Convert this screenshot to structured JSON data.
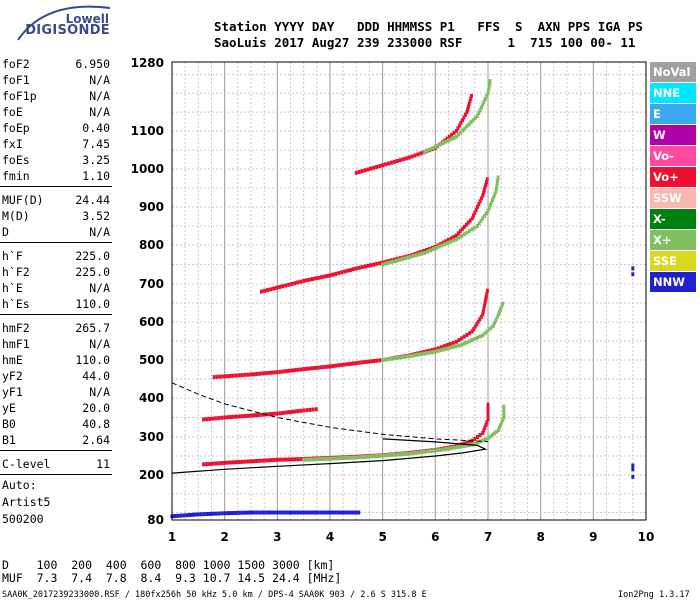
{
  "logo": {
    "top": "Lowell",
    "brand": "DIGISONDE"
  },
  "header": {
    "line1": "Station YYYY DAY   DDD HHMMSS P1   FFS  S  AXN PPS IGA PS",
    "line2": "SaoLuis 2017 Aug27 239 233000 RSF      1  715 100 00- 11"
  },
  "params": [
    {
      "name": "foF2",
      "value": "6.950"
    },
    {
      "name": "foF1",
      "value": "N/A"
    },
    {
      "name": "foF1p",
      "value": "N/A"
    },
    {
      "name": "foE",
      "value": "N/A"
    },
    {
      "name": "foEp",
      "value": "0.40"
    },
    {
      "name": "fxI",
      "value": "7.45"
    },
    {
      "name": "foEs",
      "value": "3.25"
    },
    {
      "name": "fmin",
      "value": "1.10"
    },
    {
      "name": "MUF(D)",
      "value": "24.44"
    },
    {
      "name": "M(D)",
      "value": "3.52"
    },
    {
      "name": "D",
      "value": "N/A"
    },
    {
      "name": "h`F",
      "value": "225.0"
    },
    {
      "name": "h`F2",
      "value": "225.0"
    },
    {
      "name": "h`E",
      "value": "N/A"
    },
    {
      "name": "h`Es",
      "value": "110.0"
    },
    {
      "name": "hmF2",
      "value": "265.7"
    },
    {
      "name": "hmF1",
      "value": "N/A"
    },
    {
      "name": "hmE",
      "value": "110.0"
    },
    {
      "name": "yF2",
      "value": "44.0"
    },
    {
      "name": "yF1",
      "value": "N/A"
    },
    {
      "name": "yE",
      "value": "20.0"
    },
    {
      "name": "B0",
      "value": "40.8"
    },
    {
      "name": "B1",
      "value": "2.64"
    },
    {
      "name": "C-level",
      "value": "11"
    }
  ],
  "auto": {
    "l1": "Auto:",
    "l2": "Artist5",
    "l3": "500200"
  },
  "legend": [
    {
      "label": "NoVal",
      "color": "#a0a0a0"
    },
    {
      "label": "NNE",
      "color": "#00e8ff"
    },
    {
      "label": "E",
      "color": "#3aa8f0"
    },
    {
      "label": "W",
      "color": "#b000a8"
    },
    {
      "label": "Vo-",
      "color": "#ff4aa0"
    },
    {
      "label": "Vo+",
      "color": "#ee1030"
    },
    {
      "label": "SSW",
      "color": "#f8b8b0"
    },
    {
      "label": "X-",
      "color": "#008010"
    },
    {
      "label": "X+",
      "color": "#80c060"
    },
    {
      "label": "SSE",
      "color": "#d8d820"
    },
    {
      "label": "NNW",
      "color": "#2020d0"
    }
  ],
  "footer": {
    "dist": "D    100  200  400  600  800 1000 1500 3000 [km]",
    "muf": "MUF  7.3  7.4  7.8  8.4  9.3 10.7 14.5 24.4 [MHz]",
    "file": "SAA0K_2017239233000.RSF / 180fx256h 50 kHz 5.0 km / DPS-4 SAA0K 903 / 2.6 S 315.8 E",
    "version": "Ion2Png 1.3.17"
  },
  "chart_data": {
    "type": "scatter",
    "xlim": [
      1,
      10
    ],
    "ylim": [
      80,
      1300
    ],
    "xticks": [
      "1",
      "2",
      "3",
      "4",
      "5",
      "6",
      "7",
      "8",
      "9",
      "10"
    ],
    "yticks": [
      {
        "v": 80,
        "label": "80"
      },
      {
        "v": 200,
        "label": "200"
      },
      {
        "v": 300,
        "label": "300"
      },
      {
        "v": 400,
        "label": "400"
      },
      {
        "v": 500,
        "label": "500"
      },
      {
        "v": 600,
        "label": "600"
      },
      {
        "v": 700,
        "label": "700"
      },
      {
        "v": 800,
        "label": "800"
      },
      {
        "v": 900,
        "label": "900"
      },
      {
        "v": 1000,
        "label": "1000"
      },
      {
        "v": 1100,
        "label": "1100"
      },
      {
        "v": 1280,
        "label": "1280"
      }
    ],
    "traces": [
      {
        "name": "o-trace 1 hop",
        "color": "#ee1030",
        "points": [
          [
            1.6,
            228
          ],
          [
            2.0,
            232
          ],
          [
            2.5,
            236
          ],
          [
            3.0,
            240
          ],
          [
            3.5,
            242
          ],
          [
            4.0,
            245
          ],
          [
            4.5,
            248
          ],
          [
            5.0,
            252
          ],
          [
            5.5,
            258
          ],
          [
            6.0,
            266
          ],
          [
            6.4,
            276
          ],
          [
            6.7,
            290
          ],
          [
            6.9,
            310
          ],
          [
            7.0,
            345
          ],
          [
            7.0,
            390
          ]
        ]
      },
      {
        "name": "x-trace 1 hop",
        "color": "#80c060",
        "points": [
          [
            3.5,
            240
          ],
          [
            4.5,
            246
          ],
          [
            5.5,
            256
          ],
          [
            6.2,
            268
          ],
          [
            6.7,
            280
          ],
          [
            7.0,
            296
          ],
          [
            7.2,
            318
          ],
          [
            7.3,
            350
          ],
          [
            7.3,
            385
          ]
        ]
      },
      {
        "name": "o-trace 2 hop",
        "color": "#ee1030",
        "points": [
          [
            1.8,
            455
          ],
          [
            2.5,
            462
          ],
          [
            3.0,
            468
          ],
          [
            3.5,
            476
          ],
          [
            4.0,
            483
          ],
          [
            4.5,
            492
          ],
          [
            5.0,
            500
          ],
          [
            5.5,
            512
          ],
          [
            6.0,
            528
          ],
          [
            6.4,
            548
          ],
          [
            6.7,
            575
          ],
          [
            6.9,
            620
          ],
          [
            7.0,
            690
          ]
        ]
      },
      {
        "name": "x-trace 2 hop",
        "color": "#80c060",
        "points": [
          [
            5.0,
            500
          ],
          [
            5.5,
            510
          ],
          [
            6.0,
            522
          ],
          [
            6.5,
            540
          ],
          [
            6.9,
            565
          ],
          [
            7.1,
            590
          ],
          [
            7.2,
            620
          ],
          [
            7.3,
            655
          ]
        ]
      },
      {
        "name": "o-trace 3 hop",
        "color": "#ee1030",
        "points": [
          [
            2.7,
            680
          ],
          [
            3.5,
            708
          ],
          [
            4.0,
            722
          ],
          [
            4.5,
            740
          ],
          [
            5.0,
            755
          ],
          [
            5.5,
            772
          ],
          [
            6.0,
            795
          ],
          [
            6.4,
            825
          ],
          [
            6.7,
            870
          ],
          [
            6.9,
            930
          ],
          [
            7.0,
            980
          ]
        ]
      },
      {
        "name": "x-trace 3 hop",
        "color": "#80c060",
        "points": [
          [
            5.0,
            750
          ],
          [
            5.8,
            780
          ],
          [
            6.4,
            815
          ],
          [
            6.8,
            850
          ],
          [
            7.0,
            890
          ],
          [
            7.15,
            940
          ],
          [
            7.2,
            985
          ]
        ]
      },
      {
        "name": "o-trace 4 hop",
        "color": "#ee1030",
        "points": [
          [
            4.5,
            990
          ],
          [
            5.0,
            1010
          ],
          [
            5.5,
            1030
          ],
          [
            6.0,
            1055
          ],
          [
            6.4,
            1100
          ],
          [
            6.6,
            1150
          ],
          [
            6.7,
            1200
          ]
        ]
      },
      {
        "name": "x-trace 4 hop",
        "color": "#80c060",
        "points": [
          [
            5.8,
            1045
          ],
          [
            6.4,
            1085
          ],
          [
            6.8,
            1140
          ],
          [
            7.0,
            1200
          ],
          [
            7.05,
            1240
          ]
        ]
      },
      {
        "name": "Es trace",
        "color": "#ee1030",
        "points": [
          [
            1.6,
            345
          ],
          [
            2.0,
            350
          ],
          [
            2.5,
            355
          ],
          [
            3.0,
            360
          ],
          [
            3.5,
            368
          ],
          [
            3.8,
            372
          ]
        ]
      },
      {
        "name": "E low",
        "color": "#2020d0",
        "points": [
          [
            1.0,
            90
          ],
          [
            1.5,
            95
          ],
          [
            2.0,
            98
          ],
          [
            2.5,
            100
          ],
          [
            3.0,
            100
          ],
          [
            3.5,
            100
          ],
          [
            4.0,
            100
          ],
          [
            4.6,
            100
          ]
        ]
      }
    ],
    "profile_solid": [
      [
        1.0,
        205
      ],
      [
        2.0,
        215
      ],
      [
        3.0,
        223
      ],
      [
        4.0,
        230
      ],
      [
        5.0,
        238
      ],
      [
        6.0,
        250
      ],
      [
        6.5,
        258
      ],
      [
        6.95,
        268
      ],
      [
        6.8,
        278
      ],
      [
        6.0,
        287
      ],
      [
        5.0,
        295
      ]
    ],
    "profile_dashed": [
      [
        1.0,
        440
      ],
      [
        1.5,
        410
      ],
      [
        2.0,
        385
      ],
      [
        3.0,
        350
      ],
      [
        4.0,
        325
      ],
      [
        5.0,
        307
      ],
      [
        6.0,
        295
      ],
      [
        7.0,
        288
      ]
    ],
    "isolated": [
      [
        9.75,
        215
      ],
      [
        9.75,
        225
      ],
      [
        9.75,
        195
      ],
      [
        9.75,
        725
      ],
      [
        9.75,
        740
      ]
    ]
  }
}
